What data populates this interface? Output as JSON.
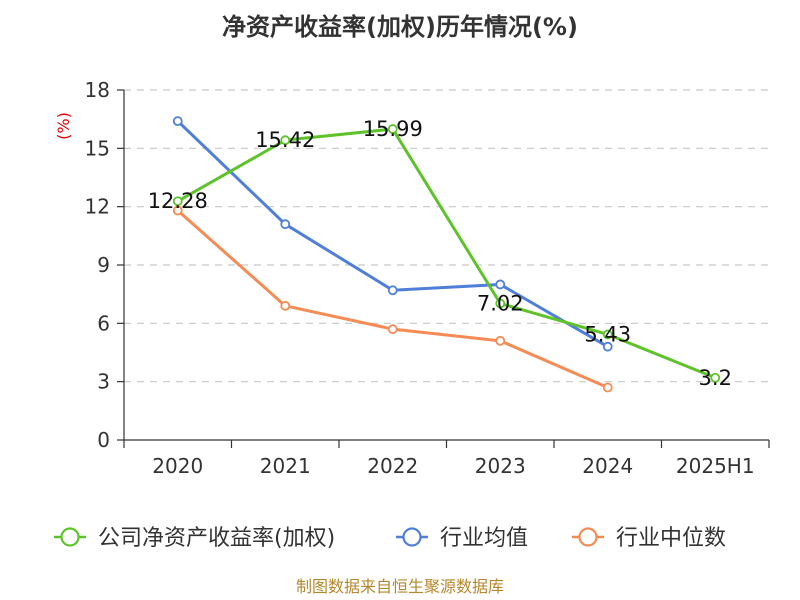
{
  "chart_data": {
    "type": "line",
    "title": "净资产收益率(加权)历年情况(%)",
    "ylabel": "(%)",
    "categories": [
      "2020",
      "2021",
      "2022",
      "2023",
      "2024",
      "2025H1"
    ],
    "yticks": [
      "0",
      "3",
      "6",
      "9",
      "12",
      "15",
      "18"
    ],
    "ylim": [
      0,
      18
    ],
    "grid": true,
    "legend_position": "bottom",
    "series": [
      {
        "name": "公司净资产收益率(加权)",
        "color": "#5ec32a",
        "values": [
          12.28,
          15.42,
          15.99,
          7.02,
          5.43,
          3.2
        ],
        "labels": [
          "12.28",
          "15.42",
          "15.99",
          "7.02",
          "5.43",
          "3.2"
        ]
      },
      {
        "name": "行业均值",
        "color": "#4f7fd9",
        "values": [
          16.4,
          11.1,
          7.7,
          8.0,
          4.8,
          null
        ]
      },
      {
        "name": "行业中位数",
        "color": "#f58b55",
        "values": [
          11.8,
          6.9,
          5.7,
          5.1,
          2.7,
          null
        ]
      }
    ]
  },
  "source": "制图数据来自恒生聚源数据库"
}
